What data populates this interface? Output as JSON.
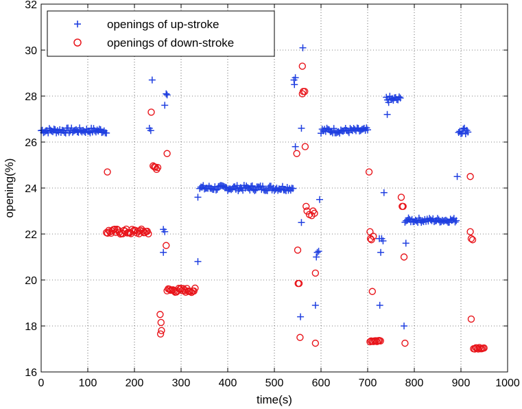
{
  "chart_data": {
    "type": "scatter",
    "title": "",
    "xlabel": "time(s)",
    "ylabel": "opening(%)",
    "xlim": [
      0,
      1000
    ],
    "ylim": [
      16,
      32
    ],
    "xticks": [
      0,
      100,
      200,
      300,
      400,
      500,
      600,
      700,
      800,
      900,
      1000
    ],
    "yticks": [
      16,
      18,
      20,
      22,
      24,
      26,
      28,
      30,
      32
    ],
    "grid": true,
    "legend_position": "top-left",
    "colors": {
      "up": "#1f3fe0",
      "down": "#e8141a"
    },
    "series": [
      {
        "name": "openings of up-stroke",
        "marker": "plus",
        "segments": [
          {
            "x_start": 0,
            "x_end": 140,
            "y": 26.5,
            "jitter": 0.12
          },
          {
            "x_start": 340,
            "x_end": 540,
            "y": 24.0,
            "jitter": 0.12
          },
          {
            "x_start": 600,
            "x_end": 700,
            "y": 26.5,
            "jitter": 0.12
          },
          {
            "x_start": 740,
            "x_end": 770,
            "y": 27.85,
            "jitter": 0.15
          },
          {
            "x_start": 780,
            "x_end": 890,
            "y": 22.6,
            "jitter": 0.1
          },
          {
            "x_start": 895,
            "x_end": 915,
            "y": 26.5,
            "jitter": 0.15
          }
        ],
        "points": [
          [
            232,
            26.6
          ],
          [
            235,
            26.5
          ],
          [
            238,
            28.7
          ],
          [
            262,
            22.2
          ],
          [
            265,
            22.1
          ],
          [
            262,
            21.2
          ],
          [
            265,
            27.6
          ],
          [
            268,
            28.1
          ],
          [
            270,
            28.05
          ],
          [
            336,
            23.6
          ],
          [
            336,
            20.8
          ],
          [
            542,
            28.7
          ],
          [
            545,
            28.8
          ],
          [
            543,
            28.5
          ],
          [
            545,
            25.8
          ],
          [
            556,
            18.4
          ],
          [
            558,
            22.5
          ],
          [
            558,
            26.6
          ],
          [
            561,
            30.1
          ],
          [
            588,
            18.9
          ],
          [
            590,
            21.0
          ],
          [
            592,
            21.2
          ],
          [
            595,
            21.25
          ],
          [
            597,
            23.5
          ],
          [
            735,
            23.8
          ],
          [
            728,
            21.2
          ],
          [
            726,
            18.9
          ],
          [
            725,
            21.8
          ],
          [
            730,
            21.8
          ],
          [
            733,
            21.7
          ],
          [
            742,
            27.2
          ],
          [
            778,
            18.0
          ],
          [
            782,
            21.6
          ],
          [
            892,
            24.5
          ]
        ]
      },
      {
        "name": "openings of down-stroke",
        "marker": "circle",
        "segments": [
          {
            "x_start": 140,
            "x_end": 230,
            "y": 22.1,
            "jitter": 0.12
          },
          {
            "x_start": 270,
            "x_end": 330,
            "y": 19.55,
            "jitter": 0.1
          },
          {
            "x_start": 240,
            "x_end": 252,
            "y": 24.9,
            "jitter": 0.1
          },
          {
            "x_start": 705,
            "x_end": 728,
            "y": 17.35,
            "jitter": 0.05
          },
          {
            "x_start": 927,
            "x_end": 950,
            "y": 17.05,
            "jitter": 0.05
          }
        ],
        "points": [
          [
            142,
            24.7
          ],
          [
            236,
            27.3
          ],
          [
            255,
            18.5
          ],
          [
            257,
            18.15
          ],
          [
            258,
            17.8
          ],
          [
            256,
            17.65
          ],
          [
            268,
            21.5
          ],
          [
            270,
            25.5
          ],
          [
            548,
            25.5
          ],
          [
            550,
            21.3
          ],
          [
            551,
            19.85
          ],
          [
            553,
            19.85
          ],
          [
            555,
            17.5
          ],
          [
            560,
            28.1
          ],
          [
            562,
            28.2
          ],
          [
            565,
            28.2
          ],
          [
            560,
            29.3
          ],
          [
            566,
            25.8
          ],
          [
            568,
            23.2
          ],
          [
            570,
            23.0
          ],
          [
            575,
            22.85
          ],
          [
            580,
            22.8
          ],
          [
            583,
            23.0
          ],
          [
            586,
            22.9
          ],
          [
            588,
            20.3
          ],
          [
            588,
            17.25
          ],
          [
            703,
            24.7
          ],
          [
            705,
            22.1
          ],
          [
            706,
            21.8
          ],
          [
            708,
            21.75
          ],
          [
            712,
            21.9
          ],
          [
            710,
            19.5
          ],
          [
            772,
            23.6
          ],
          [
            774,
            23.2
          ],
          [
            776,
            23.2
          ],
          [
            778,
            21.0
          ],
          [
            780,
            17.25
          ],
          [
            920,
            24.5
          ],
          [
            920,
            22.1
          ],
          [
            922,
            21.8
          ],
          [
            925,
            21.75
          ],
          [
            922,
            18.3
          ]
        ]
      }
    ]
  }
}
